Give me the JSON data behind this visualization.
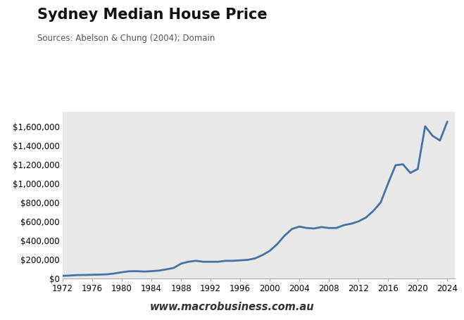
{
  "title": "Sydney Median House Price",
  "subtitle": "Sources: Abelson & Chung (2004); Domain",
  "watermark": "www.macrobusiness.com.au",
  "line_color": "#4472a8",
  "bg_color": "#e8e8e8",
  "fig_bg_color": "#ffffff",
  "years": [
    1972,
    1973,
    1974,
    1975,
    1976,
    1977,
    1978,
    1979,
    1980,
    1981,
    1982,
    1983,
    1984,
    1985,
    1986,
    1987,
    1988,
    1989,
    1990,
    1991,
    1992,
    1993,
    1994,
    1995,
    1996,
    1997,
    1998,
    1999,
    2000,
    2001,
    2002,
    2003,
    2004,
    2005,
    2006,
    2007,
    2008,
    2009,
    2010,
    2011,
    2012,
    2013,
    2014,
    2015,
    2016,
    2017,
    2018,
    2019,
    2020,
    2021,
    2022,
    2023,
    2024
  ],
  "prices": [
    27000,
    30000,
    35000,
    36000,
    38000,
    40000,
    43000,
    52000,
    65000,
    75000,
    76000,
    72000,
    76000,
    82000,
    95000,
    110000,
    155000,
    175000,
    185000,
    175000,
    175000,
    175000,
    185000,
    185000,
    190000,
    195000,
    210000,
    245000,
    290000,
    360000,
    450000,
    520000,
    545000,
    530000,
    525000,
    540000,
    530000,
    530000,
    560000,
    575000,
    600000,
    640000,
    710000,
    800000,
    1000000,
    1190000,
    1200000,
    1110000,
    1150000,
    1600000,
    1500000,
    1450000,
    1650000
  ],
  "xlim": [
    1972,
    2025
  ],
  "ylim": [
    0,
    1750000
  ],
  "yticks": [
    0,
    200000,
    400000,
    600000,
    800000,
    1000000,
    1200000,
    1400000,
    1600000
  ],
  "ytick_labels": [
    "$0",
    "$200,000",
    "$400,000",
    "$600,000",
    "$800,000",
    "$1,000,000",
    "$1,200,000",
    "$1,400,000",
    "$1,600,000"
  ],
  "xticks": [
    1972,
    1976,
    1980,
    1984,
    1988,
    1992,
    1996,
    2000,
    2004,
    2008,
    2012,
    2016,
    2020,
    2024
  ],
  "macro_red": "#cc1111",
  "macro_text": "#ffffff",
  "line_width": 2.0
}
